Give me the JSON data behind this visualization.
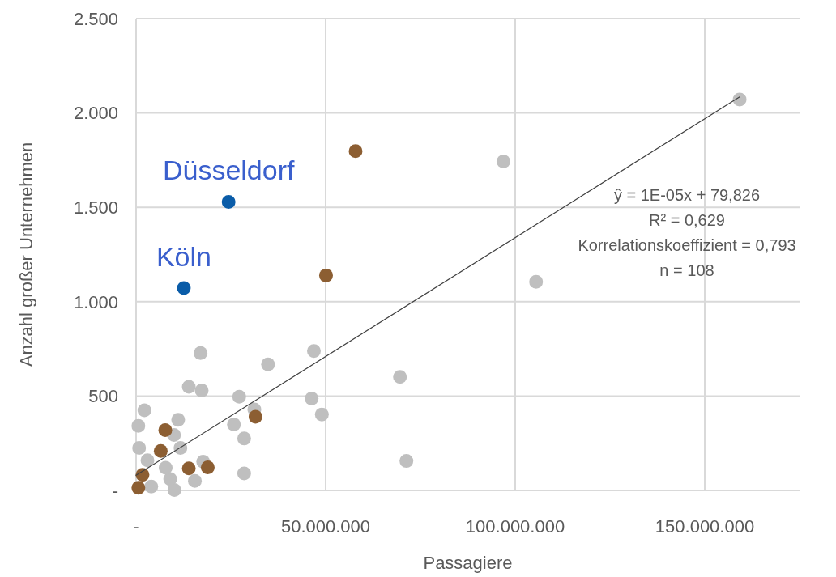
{
  "chart_data": {
    "type": "scatter",
    "xlabel": "Passagiere",
    "ylabel": "Anzahl großer Unternehmen",
    "marker": "circle",
    "grid": true,
    "xlim": [
      0,
      175000000
    ],
    "ylim": [
      0,
      2500
    ],
    "xticks": [
      {
        "value": 0,
        "label": "-"
      },
      {
        "value": 50000000,
        "label": "50.000.000"
      },
      {
        "value": 100000000,
        "label": "100.000.000"
      },
      {
        "value": 150000000,
        "label": "150.000.000"
      }
    ],
    "yticks": [
      {
        "value": 0,
        "label": "-"
      },
      500,
      {
        "value": 1000,
        "label": "1.000"
      },
      {
        "value": 1500,
        "label": "1.500"
      },
      {
        "value": 2000,
        "label": "2.000"
      },
      {
        "value": 2500,
        "label": "2.500"
      }
    ],
    "annotations": [
      {
        "text": "Düsseldorf",
        "x": 24400000,
        "y": 1529
      },
      {
        "text": "Köln",
        "x": 12600000,
        "y": 1072
      },
      "ŷ = 1E-05x + 79,826",
      "R² = 0,629",
      "Korrelationskoeffizient = 0,793",
      "n = 108"
    ],
    "series": [
      {
        "color": "#bfbfbf",
        "x": [
          159200000,
          96900000,
          105500000,
          69600000,
          71300000,
          46900000,
          46300000,
          49000000,
          34800000,
          17000000,
          13900000,
          17300000,
          27200000,
          25800000,
          28500000,
          28500000,
          31200000,
          2200000,
          600000,
          11100000,
          800000,
          10000000,
          11700000,
          17700000,
          10100000,
          3000000,
          4000000,
          9000000,
          7800000,
          15500000
        ],
        "values": [
          2071,
          1743,
          1105,
          601,
          156,
          739,
          487,
          402,
          668,
          728,
          549,
          530,
          496,
          349,
          275,
          90,
          429,
          425,
          342,
          374,
          225,
          294,
          225,
          152,
          2,
          160,
          20,
          60,
          120,
          50
        ]
      },
      {
        "color": "#8c5e32",
        "x": [
          57900000,
          50100000,
          31500000,
          7700000,
          6500000,
          13900000,
          18900000,
          1700000,
          600000
        ],
        "values": [
          1798,
          1139,
          390,
          319,
          209,
          117,
          122,
          83,
          14
        ]
      },
      {
        "color": "#0a5ca8",
        "x": [
          24400000,
          12600000
        ],
        "values": [
          1529,
          1072
        ]
      },
      {
        "type": "line",
        "marker": "none",
        "color": "#404040",
        "x": [
          0,
          159200000
        ],
        "values": [
          80,
          2085
        ]
      }
    ]
  }
}
